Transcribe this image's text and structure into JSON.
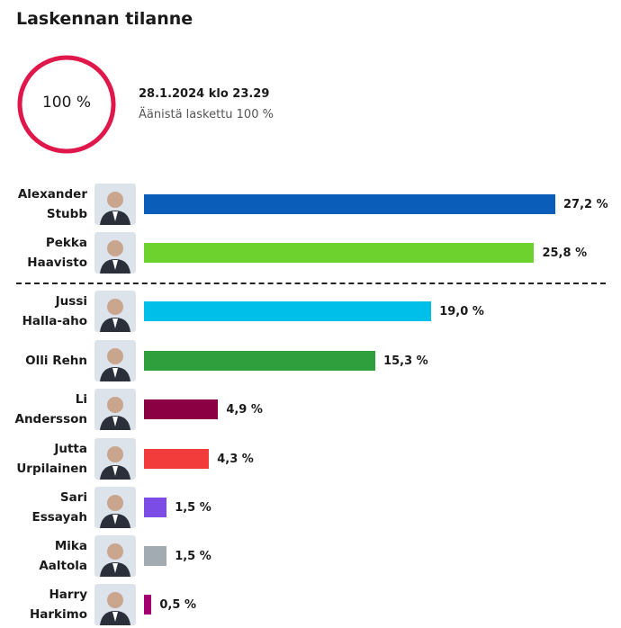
{
  "chart_data": {
    "type": "bar",
    "orientation": "horizontal",
    "title": "Laskennan tilanne",
    "progress": 100,
    "progress_label": "100 %",
    "timestamp": "28.1.2024 klo 23.29",
    "subtitle": "Äänistä laskettu 100 %",
    "categories": [
      "Alexander\nStubb",
      "Pekka\nHaavisto",
      "Jussi\nHalla-aho",
      "Olli Rehn",
      "Li\nAndersson",
      "Jutta\nUrpilainen",
      "Sari\nEssayah",
      "Mika\nAaltola",
      "Harry\nHarkimo"
    ],
    "values": [
      27.2,
      25.8,
      19.0,
      15.3,
      4.9,
      4.3,
      1.5,
      1.5,
      0.5
    ],
    "value_labels": [
      "27,2 %",
      "25,8 %",
      "19,0 %",
      "15,3 %",
      "4,9 %",
      "4,3 %",
      "1,5 %",
      "1,5 %",
      "0,5 %"
    ],
    "colors": [
      "#0a5db8",
      "#6dd12e",
      "#00c0ea",
      "#2f9e3d",
      "#8a0042",
      "#f23b3b",
      "#7c4ce6",
      "#a2abb2",
      "#a4006f"
    ]
  }
}
